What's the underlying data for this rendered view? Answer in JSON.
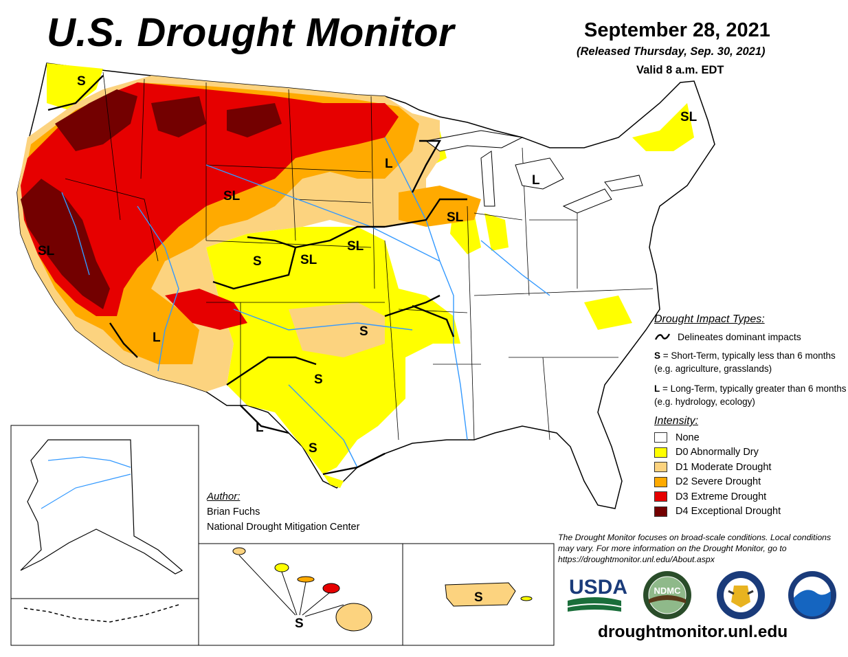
{
  "header": {
    "title": "U.S. Drought Monitor",
    "date": "September 28, 2021",
    "released": "(Released Thursday, Sep. 30, 2021)",
    "valid": "Valid 8 a.m. EDT"
  },
  "map_labels": {
    "pnw": "S",
    "california": "SL",
    "great_basin": "SL",
    "arizona": "L",
    "colorado": "S",
    "kansas_west": "SL",
    "nebraska": "SL",
    "oklahoma": "S",
    "texas_central": "S",
    "texas_west": "L",
    "texas_south": "S",
    "minnesota": "L",
    "michigan": "L",
    "wisconsin": "SL",
    "maine": "SL",
    "hawaii": "S",
    "puerto_rico": "S"
  },
  "legend": {
    "impact_heading": "Drought Impact Types:",
    "impact_line": "Delineates dominant impacts",
    "short_term_code": "S",
    "short_term_text": "= Short-Term, typically less than 6 months (e.g. agriculture, grasslands)",
    "long_term_code": "L",
    "long_term_text": "= Long-Term, typically greater than 6 months (e.g. hydrology, ecology)",
    "intensity_heading": "Intensity:",
    "categories": [
      {
        "label": "None",
        "color": "#ffffff"
      },
      {
        "label": "D0 Abnormally Dry",
        "color": "#ffff00"
      },
      {
        "label": "D1 Moderate Drought",
        "color": "#fcd37f"
      },
      {
        "label": "D2 Severe Drought",
        "color": "#ffaa00"
      },
      {
        "label": "D3 Extreme Drought",
        "color": "#e60000"
      },
      {
        "label": "D4 Exceptional Drought",
        "color": "#730000"
      }
    ]
  },
  "author": {
    "label": "Author:",
    "name": "Brian Fuchs",
    "org": "National Drought Mitigation Center"
  },
  "disclaimer": "The Drought Monitor focuses on broad-scale conditions. Local conditions may vary. For more information on the Drought Monitor, go to https://droughtmonitor.unl.edu/About.aspx",
  "logos": {
    "usda": "USDA",
    "ndmc": "NDMC",
    "icons": [
      "usda-logo-icon",
      "ndmc-logo-icon",
      "commerce-seal-icon",
      "noaa-logo-icon"
    ]
  },
  "website": "droughtmonitor.unl.edu",
  "colors": {
    "none": "#ffffff",
    "d0": "#ffff00",
    "d1": "#fcd37f",
    "d2": "#ffaa00",
    "d3": "#e60000",
    "d4": "#730000",
    "water": "#3399ff"
  }
}
